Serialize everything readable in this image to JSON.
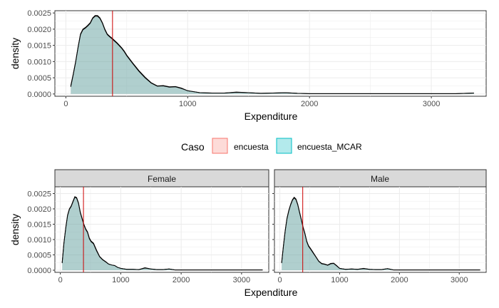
{
  "legend": {
    "title": "Caso",
    "position": "middle",
    "entries": [
      {
        "label": "encuesta",
        "fill": "#F8766D",
        "alpha": 0.3
      },
      {
        "label": "encuesta_MCAR",
        "fill": "#00BFC4",
        "alpha": 0.3
      }
    ]
  },
  "colors": {
    "ref_line": "#CC0000",
    "grid": "#EBEBEB",
    "strip_bg": "#D9D9D9",
    "curve": "#000000",
    "overlap_fill": "#A9C9C9"
  },
  "chart_data": [
    {
      "type": "area",
      "name": "overall",
      "xlabel": "Expenditure",
      "ylabel": "density",
      "xlim": [
        -90,
        3450
      ],
      "ylim": [
        -7e-05,
        0.00257
      ],
      "xticks": [
        0,
        1000,
        2000,
        3000
      ],
      "xtick_labels": [
        "0",
        "1000",
        "2000",
        "3000"
      ],
      "yticks": [
        0,
        0.0005,
        0.001,
        0.0015,
        0.002,
        0.0025
      ],
      "ytick_labels": [
        "0.0000",
        "0.0005",
        "0.0010",
        "0.0015",
        "0.0020",
        "0.0025"
      ],
      "grid": true,
      "vline": 383,
      "series": [
        {
          "label": "encuesta",
          "x": [
            40,
            60,
            80,
            100,
            120,
            140,
            160,
            180,
            200,
            220,
            240,
            260,
            280,
            300,
            320,
            340,
            360,
            380,
            400,
            420,
            440,
            460,
            480,
            500,
            550,
            600,
            650,
            700,
            750,
            800,
            850,
            900,
            950,
            1000,
            1100,
            1200,
            1300,
            1400,
            1500,
            1600,
            1700,
            1800,
            1900,
            2000,
            2200,
            2400,
            2600,
            2800,
            3000,
            3200,
            3350
          ],
          "y": [
            0.00025,
            0.0006,
            0.001,
            0.00145,
            0.00185,
            0.002,
            0.00205,
            0.00212,
            0.0022,
            0.00235,
            0.00242,
            0.00242,
            0.00235,
            0.0022,
            0.002,
            0.00185,
            0.00178,
            0.00172,
            0.00165,
            0.00158,
            0.0015,
            0.00142,
            0.00132,
            0.0012,
            0.00095,
            0.00072,
            0.00052,
            0.00035,
            0.00025,
            0.00026,
            0.00022,
            0.00023,
            0.00018,
            0.0001,
            4e-05,
            3e-05,
            3e-05,
            6e-05,
            4e-05,
            2e-05,
            3e-05,
            4e-05,
            2e-05,
            1e-05,
            1e-05,
            1e-05,
            1e-05,
            1e-05,
            1e-05,
            1e-05,
            3e-05
          ]
        },
        {
          "label": "encuesta_MCAR",
          "x": [
            40,
            60,
            80,
            100,
            120,
            140,
            160,
            180,
            200,
            220,
            240,
            260,
            280,
            300,
            320,
            340,
            360,
            380,
            400,
            420,
            440,
            460,
            480,
            500,
            550,
            600,
            650,
            700,
            750,
            800,
            850,
            900,
            950,
            1000,
            1100,
            1200,
            1300,
            1400,
            1500,
            1600,
            1700,
            1800,
            1900,
            2000,
            2200,
            2400,
            2600,
            2800,
            3000,
            3200,
            3350
          ],
          "y": [
            0.00022,
            0.00058,
            0.00098,
            0.00143,
            0.00183,
            0.00198,
            0.00203,
            0.0021,
            0.00218,
            0.00233,
            0.0024,
            0.0024,
            0.00233,
            0.00218,
            0.00198,
            0.00183,
            0.00176,
            0.0017,
            0.00163,
            0.00156,
            0.00148,
            0.0014,
            0.0013,
            0.00118,
            0.00093,
            0.0007,
            0.0005,
            0.00034,
            0.00024,
            0.00025,
            0.00021,
            0.00022,
            0.00017,
            0.0001,
            4e-05,
            3e-05,
            3e-05,
            5e-05,
            4e-05,
            2e-05,
            3e-05,
            4e-05,
            2e-05,
            1e-05,
            1e-05,
            1e-05,
            1e-05,
            1e-05,
            1e-05,
            1e-05,
            3e-05
          ]
        }
      ]
    },
    {
      "type": "area",
      "name": "female",
      "facet": "Female",
      "xlabel": "Expenditure",
      "ylabel": "density",
      "xlim": [
        -90,
        3450
      ],
      "ylim": [
        -7e-05,
        0.00272
      ],
      "xticks": [
        0,
        1000,
        2000,
        3000
      ],
      "xtick_labels": [
        "0",
        "1000",
        "2000",
        "3000"
      ],
      "yticks": [
        0,
        0.0005,
        0.001,
        0.0015,
        0.002,
        0.0025
      ],
      "ytick_labels": [
        "0.0000",
        "0.0005",
        "0.0010",
        "0.0015",
        "0.0020",
        "0.0025"
      ],
      "grid": true,
      "vline": 383,
      "series": [
        {
          "label": "encuesta",
          "x": [
            30,
            60,
            90,
            120,
            150,
            180,
            210,
            240,
            270,
            300,
            330,
            360,
            390,
            420,
            450,
            480,
            510,
            550,
            600,
            650,
            700,
            750,
            800,
            850,
            900,
            950,
            1000,
            1100,
            1200,
            1300,
            1400,
            1500,
            1600,
            1700,
            1800,
            1900,
            2000,
            2200,
            2400,
            2600,
            2800,
            3000,
            3200,
            3350
          ],
          "y": [
            0.00025,
            0.0009,
            0.0014,
            0.0018,
            0.002,
            0.0021,
            0.00225,
            0.0024,
            0.00237,
            0.0022,
            0.0019,
            0.0017,
            0.0015,
            0.00135,
            0.00125,
            0.00105,
            0.00095,
            0.00088,
            0.00065,
            0.00045,
            0.00035,
            0.00028,
            0.0002,
            0.00017,
            0.00015,
            9e-05,
            6e-05,
            3e-05,
            3e-05,
            2e-05,
            8e-05,
            4e-05,
            2e-05,
            2e-05,
            4e-05,
            1e-05,
            1e-05,
            1e-05,
            1e-05,
            1e-05,
            1e-05,
            1e-05,
            1e-05,
            1e-05
          ]
        },
        {
          "label": "encuesta_MCAR",
          "x": [
            30,
            60,
            90,
            120,
            150,
            180,
            210,
            240,
            270,
            300,
            330,
            360,
            390,
            420,
            450,
            480,
            510,
            550,
            600,
            650,
            700,
            750,
            800,
            850,
            900,
            950,
            1000,
            1100,
            1200,
            1300,
            1400,
            1500,
            1600,
            1700,
            1800,
            1900,
            2000,
            2200,
            2400,
            2600,
            2800,
            3000,
            3200,
            3350
          ],
          "y": [
            0.00023,
            0.00088,
            0.00138,
            0.00178,
            0.00198,
            0.00208,
            0.00223,
            0.00238,
            0.00235,
            0.00218,
            0.00188,
            0.00168,
            0.00148,
            0.00133,
            0.00123,
            0.00103,
            0.00093,
            0.00086,
            0.00063,
            0.00044,
            0.00034,
            0.00027,
            0.0002,
            0.00017,
            0.00015,
            9e-05,
            6e-05,
            3e-05,
            3e-05,
            2e-05,
            7e-05,
            4e-05,
            2e-05,
            2e-05,
            4e-05,
            1e-05,
            1e-05,
            1e-05,
            1e-05,
            1e-05,
            1e-05,
            1e-05,
            1e-05,
            1e-05
          ]
        }
      ]
    },
    {
      "type": "area",
      "name": "male",
      "facet": "Male",
      "xlabel": "Expenditure",
      "ylabel": "density",
      "xlim": [
        -90,
        3450
      ],
      "ylim": [
        -7e-05,
        0.00272
      ],
      "xticks": [
        0,
        1000,
        2000,
        3000
      ],
      "xtick_labels": [
        "0",
        "1000",
        "2000",
        "3000"
      ],
      "grid": true,
      "vline": 383,
      "series": [
        {
          "label": "encuesta",
          "x": [
            30,
            60,
            90,
            120,
            150,
            180,
            210,
            240,
            270,
            300,
            330,
            360,
            390,
            420,
            450,
            480,
            510,
            550,
            600,
            650,
            700,
            750,
            800,
            850,
            900,
            950,
            1000,
            1100,
            1200,
            1300,
            1400,
            1500,
            1600,
            1700,
            1800,
            1900,
            2000,
            2200,
            2400,
            2600,
            2800,
            3000,
            3200,
            3350
          ],
          "y": [
            0.00025,
            0.0008,
            0.0013,
            0.0017,
            0.00195,
            0.00215,
            0.0023,
            0.00238,
            0.00232,
            0.00215,
            0.0019,
            0.00165,
            0.0014,
            0.0012,
            0.00095,
            0.0008,
            0.00072,
            0.0006,
            0.00045,
            0.0003,
            0.00022,
            0.0002,
            0.00017,
            0.00022,
            0.00023,
            0.00015,
            6e-05,
            3e-05,
            4e-05,
            3e-05,
            6e-05,
            3e-05,
            2e-05,
            2e-05,
            5e-05,
            1e-05,
            1e-05,
            1e-05,
            1e-05,
            1e-05,
            1e-05,
            1e-05,
            1e-05,
            1e-05
          ]
        },
        {
          "label": "encuesta_MCAR",
          "x": [
            30,
            60,
            90,
            120,
            150,
            180,
            210,
            240,
            270,
            300,
            330,
            360,
            390,
            420,
            450,
            480,
            510,
            550,
            600,
            650,
            700,
            750,
            800,
            850,
            900,
            950,
            1000,
            1100,
            1200,
            1300,
            1400,
            1500,
            1600,
            1700,
            1800,
            1900,
            2000,
            2200,
            2400,
            2600,
            2800,
            3000,
            3200,
            3350
          ],
          "y": [
            0.00023,
            0.00078,
            0.00128,
            0.00168,
            0.00193,
            0.00213,
            0.00228,
            0.00236,
            0.0023,
            0.00213,
            0.00188,
            0.00163,
            0.00138,
            0.00118,
            0.00093,
            0.00078,
            0.0007,
            0.00058,
            0.00044,
            0.00029,
            0.00021,
            0.00019,
            0.00016,
            0.00021,
            0.00022,
            0.00014,
            6e-05,
            3e-05,
            4e-05,
            3e-05,
            5e-05,
            3e-05,
            2e-05,
            2e-05,
            5e-05,
            1e-05,
            1e-05,
            1e-05,
            1e-05,
            1e-05,
            1e-05,
            1e-05,
            1e-05,
            1e-05
          ]
        }
      ]
    }
  ]
}
